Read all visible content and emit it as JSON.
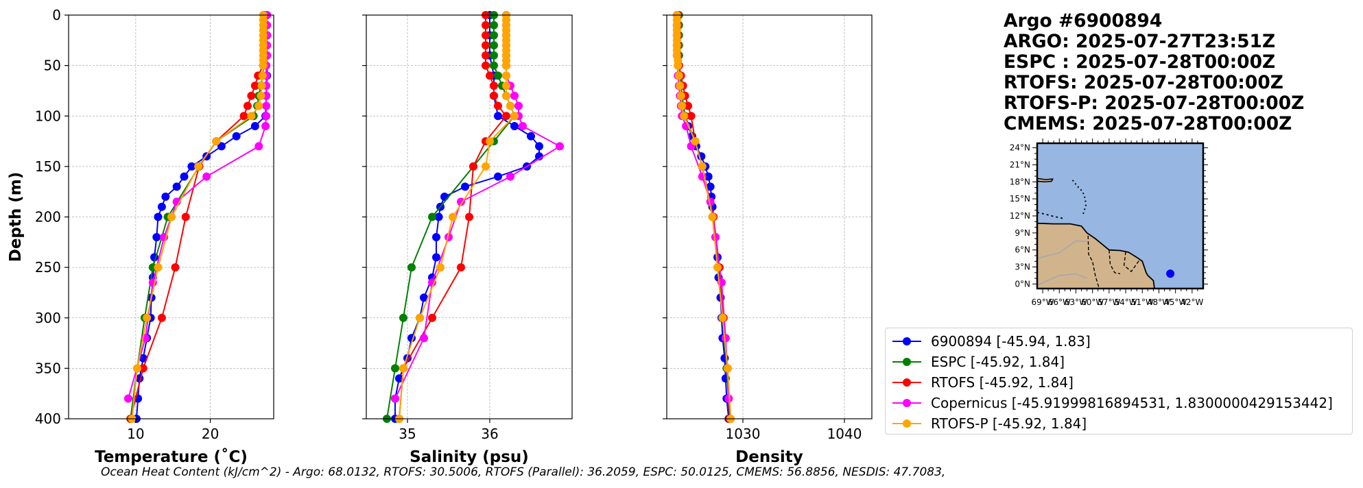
{
  "chart_data": {
    "type": "line",
    "depth_axis": {
      "label": "Depth (m)",
      "ylim": [
        0,
        400
      ],
      "ticks": [
        0,
        50,
        100,
        150,
        200,
        250,
        300,
        350,
        400
      ]
    },
    "panels": [
      {
        "id": "temperature",
        "xlabel": "Temperature (˚C)",
        "xlim": [
          1,
          28.5
        ],
        "xticks": [
          10,
          20
        ]
      },
      {
        "id": "salinity",
        "xlabel": "Salinity (psu)",
        "xlim": [
          34.5,
          37.0
        ],
        "xticks": [
          35,
          36
        ]
      },
      {
        "id": "density",
        "xlabel": "Density",
        "xlim": [
          1022.5,
          1042.7
        ],
        "xticks": [
          1030,
          1040
        ]
      }
    ],
    "series": [
      {
        "name": "6900894",
        "legend": "6900894 [-45.94, 1.83]",
        "color": "#0000ff",
        "depth": [
          0,
          20,
          40,
          60,
          80,
          100,
          110,
          120,
          130,
          140,
          150,
          160,
          170,
          180,
          190,
          200,
          220,
          240,
          260,
          280,
          300,
          320,
          340,
          360,
          380,
          400
        ],
        "temperature": [
          27.6,
          27.6,
          27.6,
          27.6,
          27.5,
          27.4,
          26.0,
          23.5,
          21.5,
          19.5,
          17.5,
          16.5,
          15.5,
          14.0,
          13.5,
          13.0,
          12.8,
          12.5,
          12.3,
          12.1,
          12.0,
          11.5,
          11.0,
          10.5,
          10.3,
          10.1
        ],
        "salinity": [
          36.0,
          36.0,
          36.0,
          36.05,
          36.05,
          36.1,
          36.3,
          36.5,
          36.6,
          36.6,
          36.45,
          36.1,
          35.7,
          35.45,
          35.4,
          35.38,
          35.35,
          35.35,
          35.3,
          35.2,
          35.15,
          35.05,
          35.0,
          34.9,
          34.85,
          34.85
        ],
        "density": [
          1023.5,
          1023.6,
          1023.7,
          1023.8,
          1024.0,
          1024.3,
          1024.6,
          1025.0,
          1025.4,
          1025.9,
          1026.3,
          1026.6,
          1026.8,
          1026.9,
          1027.0,
          1027.1,
          1027.3,
          1027.5,
          1027.6,
          1027.8,
          1027.9,
          1028.0,
          1028.2,
          1028.3,
          1028.4,
          1028.6
        ]
      },
      {
        "name": "ESPC",
        "legend": "ESPC [-45.92, 1.84]",
        "color": "#008000",
        "depth": [
          0,
          10,
          20,
          30,
          40,
          50,
          60,
          70,
          80,
          90,
          100,
          125,
          150,
          200,
          250,
          300,
          350,
          400
        ],
        "temperature": [
          27.2,
          27.2,
          27.2,
          27.2,
          27.2,
          27.2,
          27.0,
          26.8,
          26.5,
          26.3,
          25.8,
          20.8,
          18.5,
          14.3,
          12.3,
          11.2,
          10.2,
          9.3
        ],
        "salinity": [
          36.05,
          36.05,
          36.05,
          36.05,
          36.05,
          36.05,
          36.1,
          36.15,
          36.2,
          36.25,
          36.3,
          36.05,
          35.8,
          35.3,
          35.05,
          34.95,
          34.85,
          34.75
        ],
        "density": [
          1023.7,
          1023.7,
          1023.7,
          1023.7,
          1023.7,
          1023.7,
          1023.8,
          1023.9,
          1024.0,
          1024.1,
          1024.3,
          1025.3,
          1026.0,
          1027.0,
          1027.6,
          1028.0,
          1028.4,
          1028.7
        ]
      },
      {
        "name": "RTOFS",
        "legend": "RTOFS [-45.92, 1.84]",
        "color": "#ff0000",
        "depth": [
          0,
          10,
          20,
          30,
          40,
          50,
          60,
          70,
          80,
          90,
          100,
          125,
          150,
          200,
          250,
          300,
          350,
          400
        ],
        "temperature": [
          27.3,
          27.3,
          27.3,
          27.3,
          27.3,
          27.1,
          26.4,
          26.0,
          25.5,
          25.0,
          24.5,
          20.8,
          18.5,
          16.7,
          15.3,
          13.5,
          11.0,
          9.3
        ],
        "salinity": [
          35.95,
          35.95,
          35.95,
          35.95,
          35.95,
          35.95,
          36.0,
          36.05,
          36.05,
          36.1,
          36.2,
          35.95,
          35.8,
          35.75,
          35.65,
          35.3,
          34.95,
          34.9
        ],
        "density": [
          1023.6,
          1023.6,
          1023.6,
          1023.6,
          1023.6,
          1023.7,
          1023.9,
          1024.1,
          1024.3,
          1024.6,
          1024.9,
          1025.3,
          1026.0,
          1027.1,
          1027.7,
          1028.1,
          1028.5,
          1028.7
        ]
      },
      {
        "name": "Copernicus",
        "legend": "Copernicus [-45.91999816894531, 1.8300000429153442]",
        "color": "#ff00ff",
        "depth": [
          0,
          10,
          20,
          30,
          40,
          50,
          60,
          70,
          80,
          90,
          100,
          110,
          130,
          160,
          185,
          220,
          265,
          320,
          380
        ],
        "temperature": [
          27.6,
          27.6,
          27.6,
          27.6,
          27.6,
          27.5,
          27.5,
          27.5,
          27.5,
          27.5,
          27.5,
          27.4,
          26.5,
          19.5,
          15.5,
          13.8,
          12.3,
          11.3,
          9.0
        ],
        "salinity": [
          36.2,
          36.2,
          36.2,
          36.2,
          36.2,
          36.2,
          36.2,
          36.25,
          36.3,
          36.35,
          36.35,
          36.4,
          36.85,
          36.25,
          35.65,
          35.5,
          35.3,
          35.2,
          34.85
        ],
        "density": [
          1023.5,
          1023.5,
          1023.5,
          1023.5,
          1023.5,
          1023.6,
          1023.6,
          1023.7,
          1023.8,
          1023.9,
          1024.0,
          1024.4,
          1024.9,
          1026.0,
          1026.8,
          1027.3,
          1027.9,
          1028.3,
          1028.6
        ]
      },
      {
        "name": "RTOFS-P",
        "legend": "RTOFS-P [-45.92, 1.84]",
        "color": "#ffa500",
        "depth": [
          0,
          5,
          10,
          15,
          20,
          25,
          30,
          35,
          40,
          45,
          50,
          60,
          70,
          80,
          90,
          100,
          125,
          150,
          200,
          250,
          300,
          350,
          400
        ],
        "temperature": [
          27.1,
          27.1,
          27.1,
          27.1,
          27.1,
          27.1,
          27.1,
          27.1,
          27.1,
          27.1,
          27.1,
          27.0,
          26.9,
          26.8,
          26.5,
          25.5,
          20.8,
          18.4,
          14.8,
          13.0,
          11.5,
          10.2,
          9.5
        ],
        "salinity": [
          36.2,
          36.2,
          36.2,
          36.2,
          36.2,
          36.2,
          36.2,
          36.2,
          36.2,
          36.2,
          36.2,
          36.2,
          36.2,
          36.2,
          36.25,
          36.3,
          36.0,
          35.95,
          35.55,
          35.4,
          35.15,
          34.95,
          34.9
        ],
        "density": [
          1023.5,
          1023.5,
          1023.5,
          1023.5,
          1023.5,
          1023.5,
          1023.5,
          1023.5,
          1023.5,
          1023.6,
          1023.6,
          1023.7,
          1023.8,
          1023.9,
          1024.0,
          1024.2,
          1025.3,
          1026.0,
          1027.0,
          1027.5,
          1028.0,
          1028.5,
          1028.8
        ]
      }
    ],
    "map": {
      "lat_ticks": [
        "0°N",
        "3°N",
        "6°N",
        "9°N",
        "12°N",
        "15°N",
        "18°N",
        "21°N",
        "24°N"
      ],
      "lon_ticks": [
        "69°W",
        "66°W",
        "63°W",
        "60°W",
        "57°W",
        "54°W",
        "51°W",
        "48°W",
        "45°W",
        "42°W"
      ],
      "lon_range": [
        -70,
        -40
      ],
      "lat_range": [
        -0.8,
        24.8
      ],
      "float_position": {
        "lon": -45.94,
        "lat": 1.83
      },
      "ocean_color": "#97b6e1",
      "land_color": "#d2b48c"
    }
  },
  "header": {
    "title": "Argo #6900894",
    "argo_time": "ARGO: 2025-07-27T23:51Z",
    "espc_time": "ESPC : 2025-07-28T00:00Z",
    "rtofs_time": "RTOFS: 2025-07-28T00:00Z",
    "rtofsp_time": "RTOFS-P: 2025-07-28T00:00Z",
    "cmems_time": "CMEMS: 2025-07-28T00:00Z"
  },
  "footer": {
    "text": "Ocean Heat Content (kJ/cm^2) - Argo: 68.0132,  RTOFS: 30.5006,  RTOFS (Parallel): 36.2059,  ESPC: 50.0125,  CMEMS: 56.8856,  NESDIS: 47.7083,"
  }
}
